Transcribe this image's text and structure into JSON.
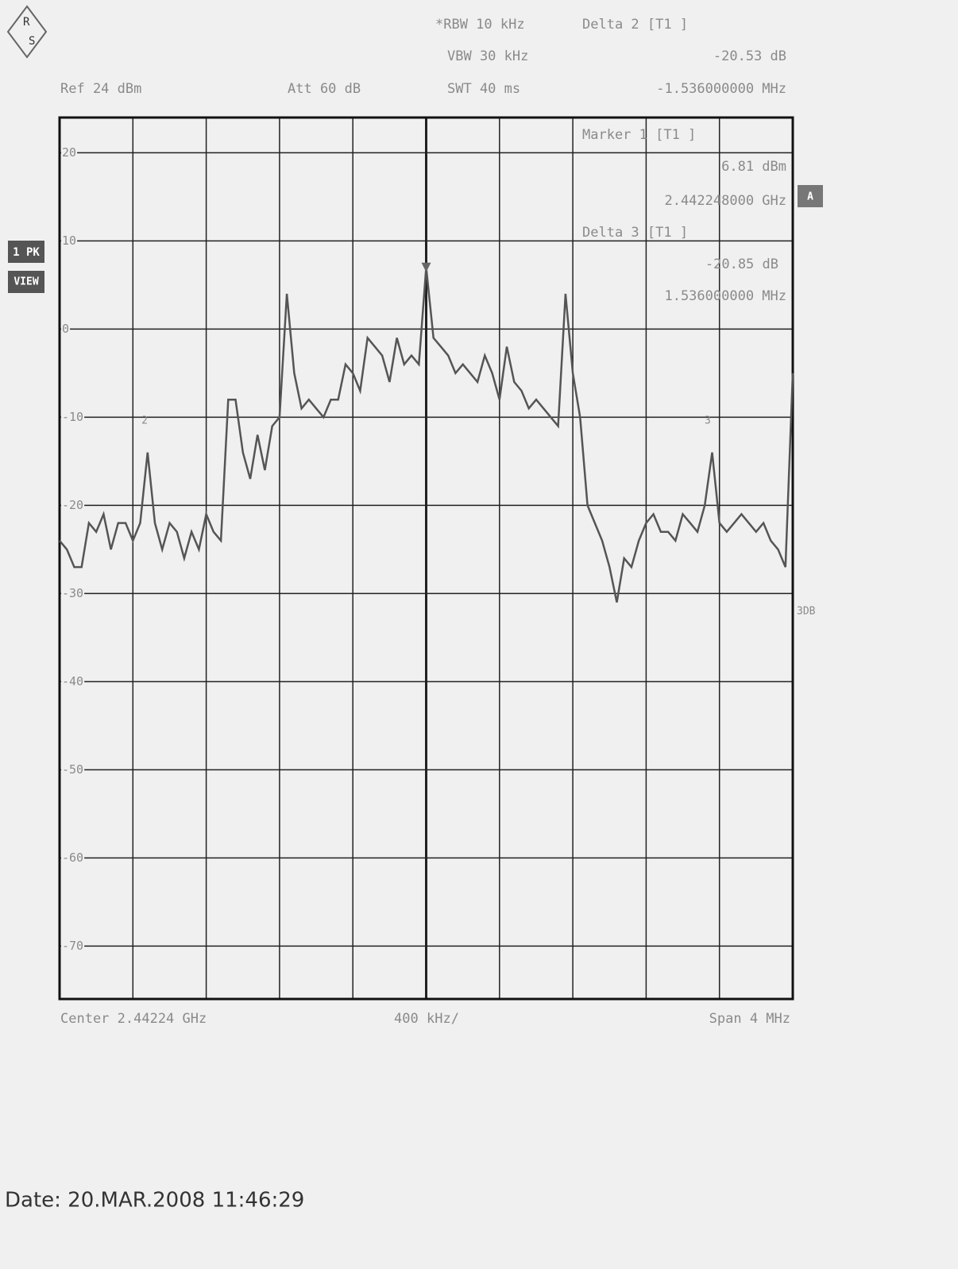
{
  "chart_data": {
    "type": "line",
    "logo": [
      "R",
      "S"
    ],
    "header": {
      "ref": "Ref  24 dBm",
      "att": "Att  60 dB",
      "rbw": "*RBW 10 kHz",
      "vbw": "VBW 30 kHz",
      "swt": "SWT 40 ms",
      "delta2_title": "Delta 2 [T1 ]",
      "delta2_level": "-20.53 dB",
      "delta2_freq": "-1.536000000 MHz",
      "marker1_title": "Marker 1 [T1 ]",
      "marker1_level": "6.81 dBm",
      "marker1_freq": "2.442248000 GHz",
      "delta3_title": "Delta 3 [T1 ]",
      "delta3_level": "-20.85 dB",
      "delta3_freq": "1.536000000 MHz"
    },
    "side": {
      "trace": "1 PK",
      "mode": "VIEW",
      "badge": "A",
      "note": "3DB"
    },
    "footer": {
      "center": "Center 2.44224 GHz",
      "div": "400 kHz/",
      "span": "Span 4 MHz"
    },
    "date": "Date: 20.MAR.2008   11:46:29",
    "color": "#555555",
    "grid": true,
    "xlim": [
      -2,
      2
    ],
    "ylim": [
      -76,
      24
    ],
    "yticks": [
      20,
      10,
      0,
      -10,
      -20,
      -30,
      -40,
      -50,
      -60,
      -70
    ],
    "x": [
      -2.0,
      -1.96,
      -1.92,
      -1.88,
      -1.84,
      -1.8,
      -1.76,
      -1.72,
      -1.68,
      -1.64,
      -1.6,
      -1.56,
      -1.52,
      -1.48,
      -1.44,
      -1.4,
      -1.36,
      -1.32,
      -1.28,
      -1.24,
      -1.2,
      -1.16,
      -1.12,
      -1.08,
      -1.04,
      -1.0,
      -0.96,
      -0.92,
      -0.88,
      -0.84,
      -0.8,
      -0.76,
      -0.72,
      -0.68,
      -0.64,
      -0.6,
      -0.56,
      -0.52,
      -0.48,
      -0.44,
      -0.4,
      -0.36,
      -0.32,
      -0.28,
      -0.24,
      -0.2,
      -0.16,
      -0.12,
      -0.08,
      -0.04,
      0.0,
      0.04,
      0.08,
      0.12,
      0.16,
      0.2,
      0.24,
      0.28,
      0.32,
      0.36,
      0.4,
      0.44,
      0.48,
      0.52,
      0.56,
      0.6,
      0.64,
      0.68,
      0.72,
      0.76,
      0.8,
      0.84,
      0.88,
      0.92,
      0.96,
      1.0,
      1.04,
      1.08,
      1.12,
      1.16,
      1.2,
      1.24,
      1.28,
      1.32,
      1.36,
      1.4,
      1.44,
      1.48,
      1.52,
      1.56,
      1.6,
      1.64,
      1.68,
      1.72,
      1.76,
      1.8,
      1.84,
      1.88,
      1.92,
      1.96,
      2.0
    ],
    "values": [
      -24,
      -25,
      -27,
      -27,
      -22,
      -23,
      -21,
      -25,
      -22,
      -22,
      -24,
      -22,
      -14,
      -22,
      -25,
      -22,
      -23,
      -26,
      -23,
      -25,
      -21,
      -23,
      -24,
      -8,
      -8,
      -14,
      -17,
      -12,
      -16,
      -11,
      -10,
      4,
      -5,
      -9,
      -8,
      -9,
      -10,
      -8,
      -8,
      -4,
      -5,
      -7,
      -1,
      -2,
      -3,
      -6,
      -1,
      -4,
      -3,
      -4,
      7,
      -1,
      -2,
      -3,
      -5,
      -4,
      -5,
      -6,
      -3,
      -5,
      -8,
      -2,
      -6,
      -7,
      -9,
      -8,
      -9,
      -10,
      -11,
      4,
      -5,
      -10,
      -20,
      -22,
      -24,
      -27,
      -31,
      -26,
      -27,
      -24,
      -22,
      -21,
      -23,
      -23,
      -24,
      -21,
      -22,
      -23,
      -20,
      -14,
      -22,
      -23,
      -22,
      -21,
      -22,
      -23,
      -22,
      -24,
      -25,
      -27,
      -5
    ],
    "markers": [
      {
        "x": 0,
        "y": 6.81
      },
      {
        "label": "2",
        "x": -1.536,
        "y": -14
      },
      {
        "label": "3",
        "x": 1.536,
        "y": -14
      }
    ]
  }
}
